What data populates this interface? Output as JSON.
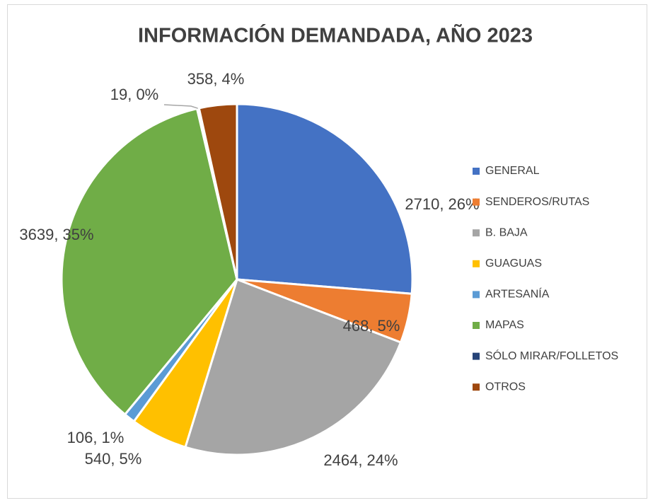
{
  "chart_data": {
    "type": "pie",
    "title": "INFORMACIÓN DEMANDADA, AÑO 2023",
    "categories": [
      "GENERAL",
      "SENDEROS/RUTAS",
      "B. BAJA",
      "GUAGUAS",
      "ARTESANÍA",
      "MAPAS",
      "SÓLO MIRAR/FOLLETOS",
      "OTROS"
    ],
    "values": [
      2710,
      468,
      2464,
      540,
      106,
      3639,
      19,
      358
    ],
    "value_labels": [
      "2710, 26%",
      "468, 5%",
      "2464, 24%",
      "540, 5%",
      "106, 1%",
      "3639, 35%",
      "19, 0%",
      "358, 4%"
    ],
    "colors": [
      "#4472c4",
      "#ed7d31",
      "#a5a5a5",
      "#ffc000",
      "#5b9bd5",
      "#70ad47",
      "#264478",
      "#9e480e"
    ],
    "legend": "right"
  }
}
